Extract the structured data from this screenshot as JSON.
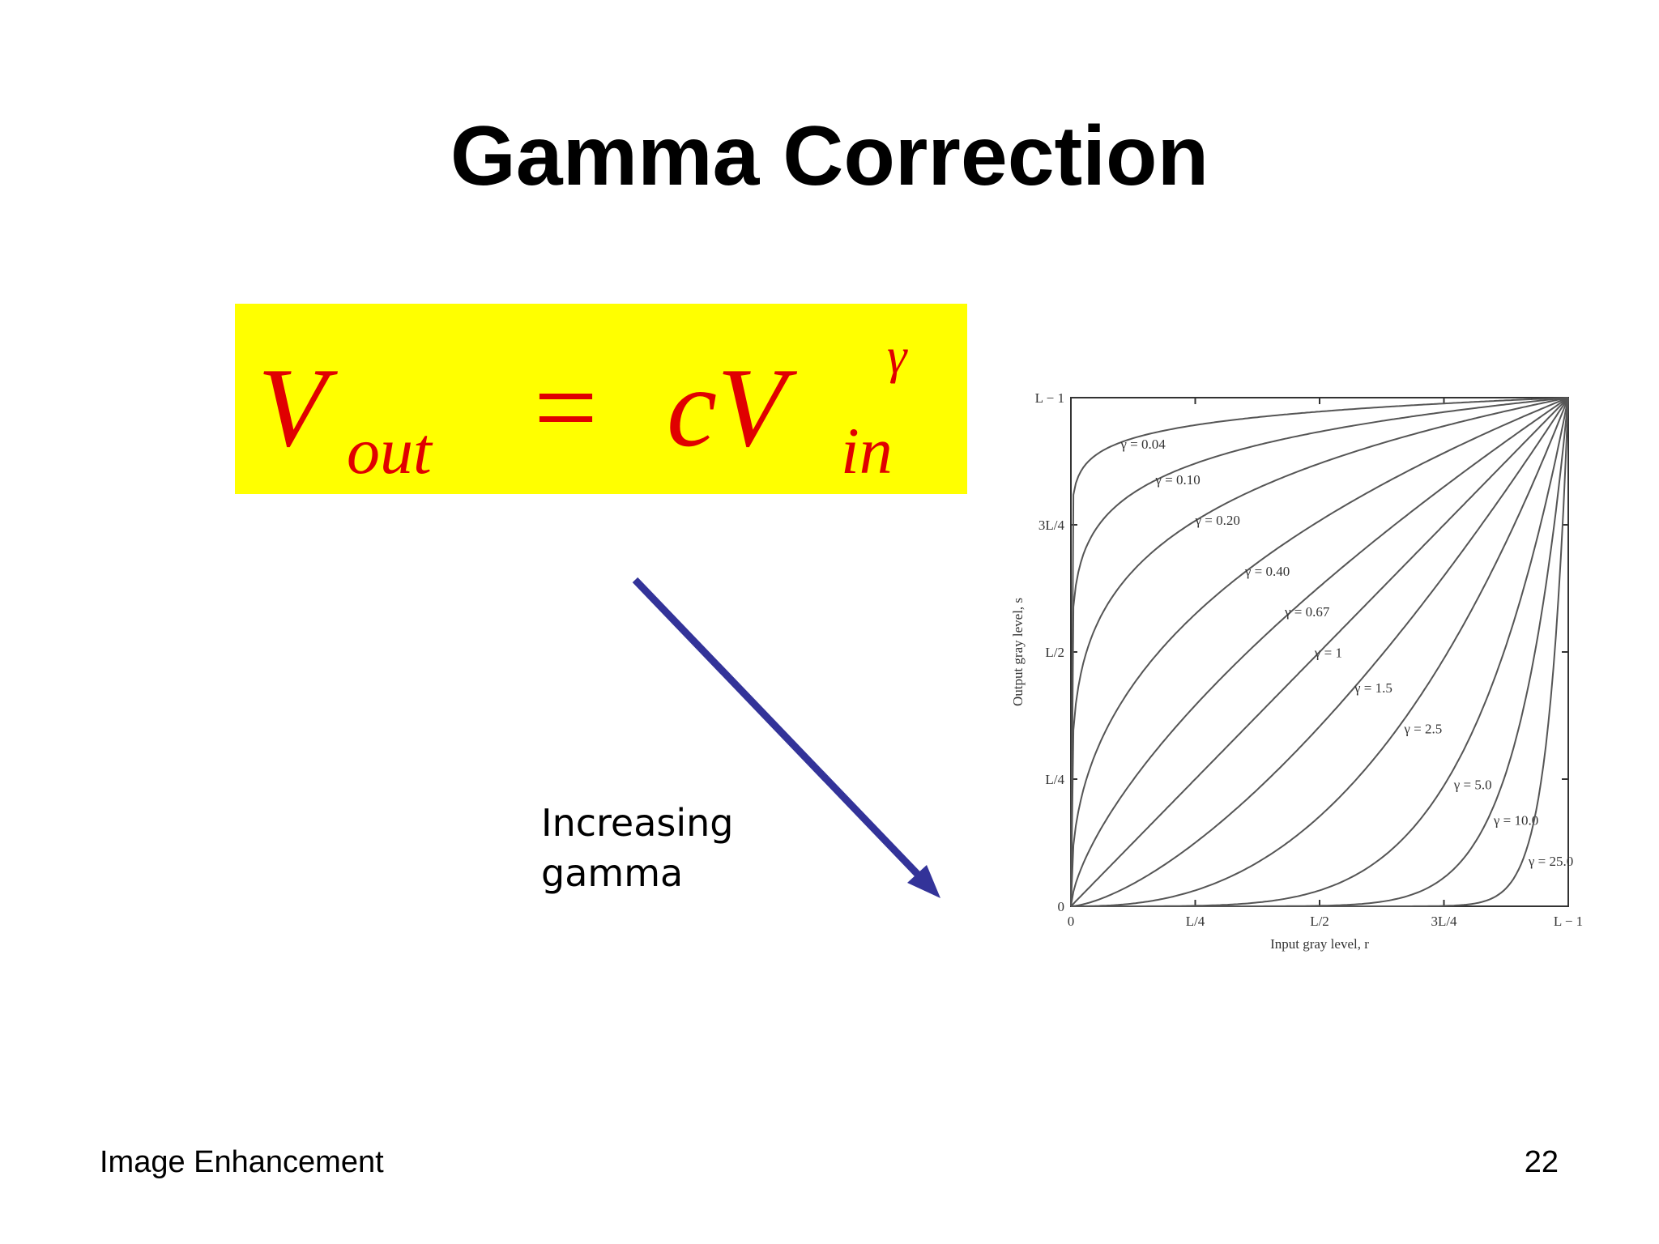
{
  "header": {
    "title": "Gamma Correction"
  },
  "formula": {
    "v1": "V",
    "sub1": "out",
    "eq": "=",
    "cv": "cV",
    "sub2": "in",
    "sup": "γ"
  },
  "note": {
    "line1": "Increasing",
    "line2": "gamma"
  },
  "footer": {
    "left": "Image Enhancement",
    "page": "22"
  },
  "chart_data": {
    "type": "gamma",
    "xlabel": "Input gray level, r",
    "ylabel": "Output gray level, s",
    "xlim": [
      0,
      1
    ],
    "ylim": [
      0,
      1
    ],
    "xticks": [
      0,
      {
        "value": 0.25,
        "label": "L/4"
      },
      {
        "value": 0.5,
        "label": "L/2"
      },
      {
        "value": 0.75,
        "label": "3L/4"
      },
      {
        "value": 1,
        "label": "L − 1"
      }
    ],
    "yticks": [
      0,
      {
        "value": 0.25,
        "label": "L/4"
      },
      {
        "value": 0.5,
        "label": "L/2"
      },
      {
        "value": 0.75,
        "label": "3L/4"
      },
      {
        "value": 1,
        "label": "L − 1"
      }
    ],
    "color": "#555555",
    "series": [
      {
        "name": "γ = 0.04",
        "gamma": 0.04
      },
      {
        "name": "γ = 0.10",
        "gamma": 0.1
      },
      {
        "name": "γ = 0.20",
        "gamma": 0.2
      },
      {
        "name": "γ = 0.40",
        "gamma": 0.4
      },
      {
        "name": "γ = 0.67",
        "gamma": 0.67
      },
      {
        "name": "γ = 1",
        "gamma": 1
      },
      {
        "name": "γ = 1.5",
        "gamma": 1.5
      },
      {
        "name": "γ = 2.5",
        "gamma": 2.5
      },
      {
        "name": "γ = 5.0",
        "gamma": 5
      },
      {
        "name": "γ = 10.0",
        "gamma": 10
      },
      {
        "name": "γ = 25.0",
        "gamma": 25
      }
    ]
  }
}
